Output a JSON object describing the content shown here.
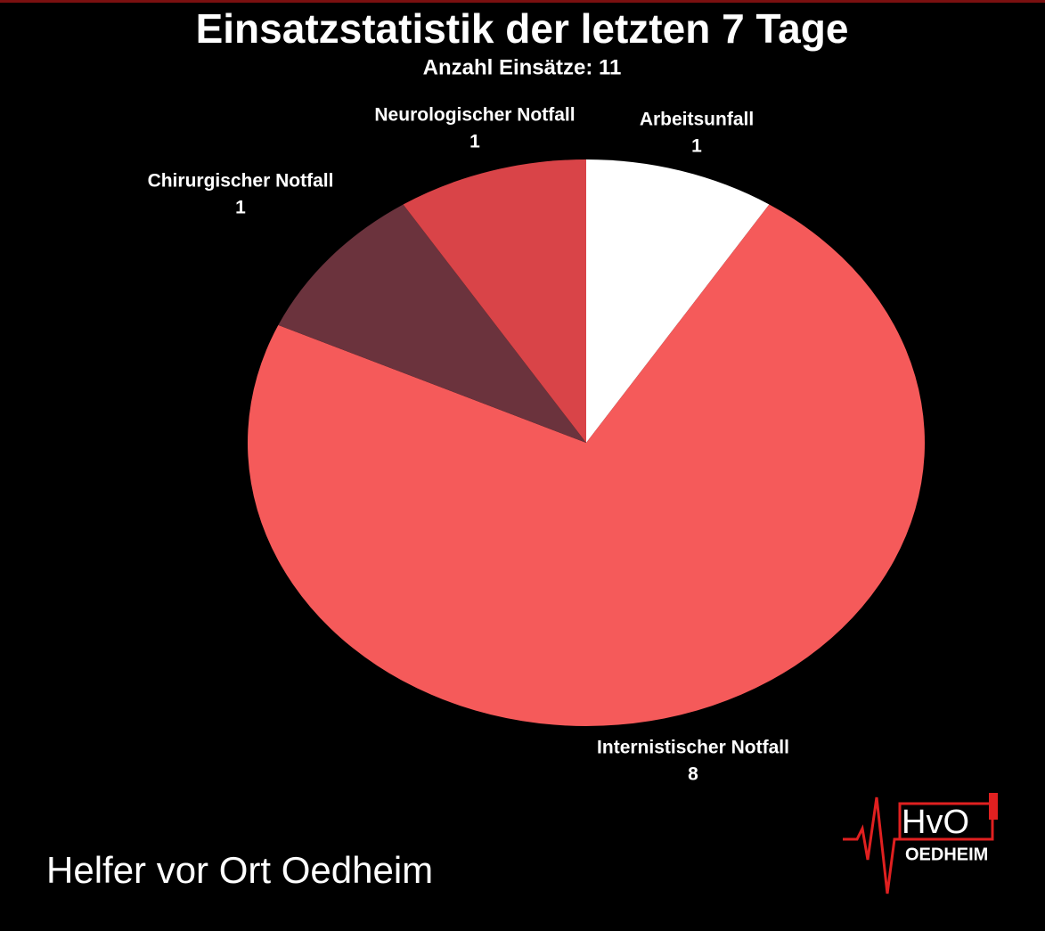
{
  "chart_data": {
    "type": "pie",
    "title": "Einsatzstatistik der letzten 7 Tage",
    "subtitle": "Anzahl Einsätze: 11",
    "categories": [
      "Arbeitsunfall",
      "Internistischer Notfall",
      "Chirurgischer Notfall",
      "Neurologischer Notfall"
    ],
    "values": [
      1,
      8,
      1,
      1
    ],
    "colors": [
      "#ffffff",
      "#f55a5a",
      "#6b333d",
      "#d94448"
    ]
  },
  "footer": "Helfer vor Ort Oedheim",
  "logo": {
    "text": "HvO",
    "subtext": "OEDHEIM"
  }
}
